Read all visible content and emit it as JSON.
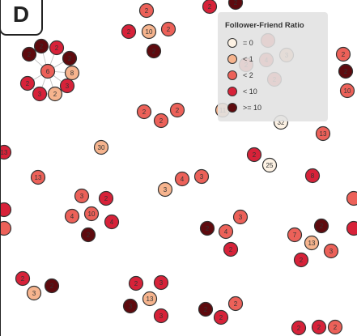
{
  "panel_label": "D",
  "legend": {
    "title": "Follower-Friend Ratio",
    "items": [
      {
        "label": "= 0",
        "color": "#fdf2e4"
      },
      {
        "label": "< 1",
        "color": "#f6b48e"
      },
      {
        "label": "< 2",
        "color": "#ec6159"
      },
      {
        "label": "< 10",
        "color": "#d72239"
      },
      {
        "label": ">= 10",
        "color": "#5e0a0e"
      }
    ]
  },
  "nodes": [
    {
      "label": "2",
      "cls": 3
    },
    {
      "label": "2",
      "cls": 4
    },
    {
      "label": "2",
      "cls": 2
    },
    {
      "label": "2",
      "cls": 3
    },
    {
      "label": "10",
      "cls": 1
    },
    {
      "label": "2",
      "cls": 2
    },
    {
      "label": "2",
      "cls": 4
    },
    {
      "label": "2",
      "cls": 4
    },
    {
      "label": "2",
      "cls": 3
    },
    {
      "label": "2",
      "cls": 4
    },
    {
      "label": "2",
      "cls": 4
    },
    {
      "label": "6",
      "cls": 2
    },
    {
      "label": "8",
      "cls": 1
    },
    {
      "label": "2",
      "cls": 3
    },
    {
      "label": "3",
      "cls": 3
    },
    {
      "label": "3",
      "cls": 3
    },
    {
      "label": "2",
      "cls": 1
    },
    {
      "label": "2",
      "cls": 2
    },
    {
      "label": "2",
      "cls": 4
    },
    {
      "label": "10",
      "cls": 2
    },
    {
      "label": "2",
      "cls": 2
    },
    {
      "label": "2",
      "cls": 2
    },
    {
      "label": "2",
      "cls": 2
    },
    {
      "label": "11",
      "cls": 1
    },
    {
      "label": "32",
      "cls": 0
    },
    {
      "label": "13",
      "cls": 2
    },
    {
      "label": "30",
      "cls": 1
    },
    {
      "label": "2",
      "cls": 3
    },
    {
      "label": "25",
      "cls": 0
    },
    {
      "label": "4",
      "cls": 2
    },
    {
      "label": "3",
      "cls": 2
    },
    {
      "label": "3",
      "cls": 1
    },
    {
      "label": "13",
      "cls": 2
    },
    {
      "label": "8",
      "cls": 3
    },
    {
      "label": "3",
      "cls": 2
    },
    {
      "label": "2",
      "cls": 3
    },
    {
      "label": "4",
      "cls": 2
    },
    {
      "label": "10",
      "cls": 2
    },
    {
      "label": "4",
      "cls": 3
    },
    {
      "label": "2",
      "cls": 4
    },
    {
      "label": "2",
      "cls": 4
    },
    {
      "label": "4",
      "cls": 2
    },
    {
      "label": "3",
      "cls": 2
    },
    {
      "label": "2",
      "cls": 3
    },
    {
      "label": "2",
      "cls": 4
    },
    {
      "label": "7",
      "cls": 2
    },
    {
      "label": "13",
      "cls": 1
    },
    {
      "label": "3",
      "cls": 2
    },
    {
      "label": "2",
      "cls": 3
    },
    {
      "label": "2",
      "cls": 3
    },
    {
      "label": "3",
      "cls": 1
    },
    {
      "label": "2",
      "cls": 4
    },
    {
      "label": "2",
      "cls": 3
    },
    {
      "label": "3",
      "cls": 3
    },
    {
      "label": "13",
      "cls": 1
    },
    {
      "label": "3",
      "cls": 4
    },
    {
      "label": "3",
      "cls": 3
    },
    {
      "label": "2",
      "cls": 4
    },
    {
      "label": "2",
      "cls": 3
    },
    {
      "label": "2",
      "cls": 2
    },
    {
      "label": "2",
      "cls": 3
    },
    {
      "label": "2",
      "cls": 3
    },
    {
      "label": "2",
      "cls": 2
    },
    {
      "label": "13",
      "cls": 3
    },
    {
      "label": "",
      "cls": 2
    },
    {
      "label": "",
      "cls": 3
    },
    {
      "label": "",
      "cls": 3
    },
    {
      "label": "",
      "cls": 2
    },
    {
      "label": "",
      "cls": 2
    },
    {
      "label": "2",
      "cls": 2
    },
    {
      "label": "4",
      "cls": 2
    },
    {
      "label": "3",
      "cls": 1
    },
    {
      "label": "2",
      "cls": 2
    },
    {
      "label": "2",
      "cls": 2
    }
  ]
}
